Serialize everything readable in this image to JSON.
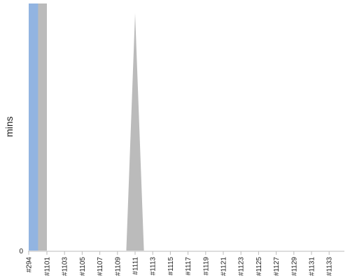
{
  "chart_data": {
    "type": "area",
    "ylabel": "mins",
    "categories": [
      "#294",
      "#1101",
      "#1103",
      "#1105",
      "#1107",
      "#1109",
      "#1111",
      "#1113",
      "#1115",
      "#1117",
      "#1119",
      "#1121",
      "#1123",
      "#1125",
      "#1127",
      "#1129",
      "#1131",
      "#1133"
    ],
    "y_ticks": [
      "0"
    ],
    "ylim": [
      0,
      100
    ],
    "grid": false,
    "series": [
      {
        "color": "#bbbbbb",
        "points": [
          {
            "x": "#294",
            "y": 100
          },
          {
            "x": "#1101",
            "y": 100
          },
          {
            "x": "#1101",
            "y": 0
          },
          {
            "x": "#1110",
            "y": 0
          },
          {
            "x": "#1111",
            "y": 96
          },
          {
            "x": "#1112",
            "y": 0
          },
          {
            "x": "#1133",
            "y": 0
          }
        ]
      },
      {
        "color": "#92b4e1",
        "points": [
          {
            "x": "#294",
            "y": 100
          },
          {
            "x": "#1100",
            "y": 100
          },
          {
            "x": "#1100",
            "y": 0
          },
          {
            "x": "#1133",
            "y": 0
          }
        ]
      }
    ]
  }
}
